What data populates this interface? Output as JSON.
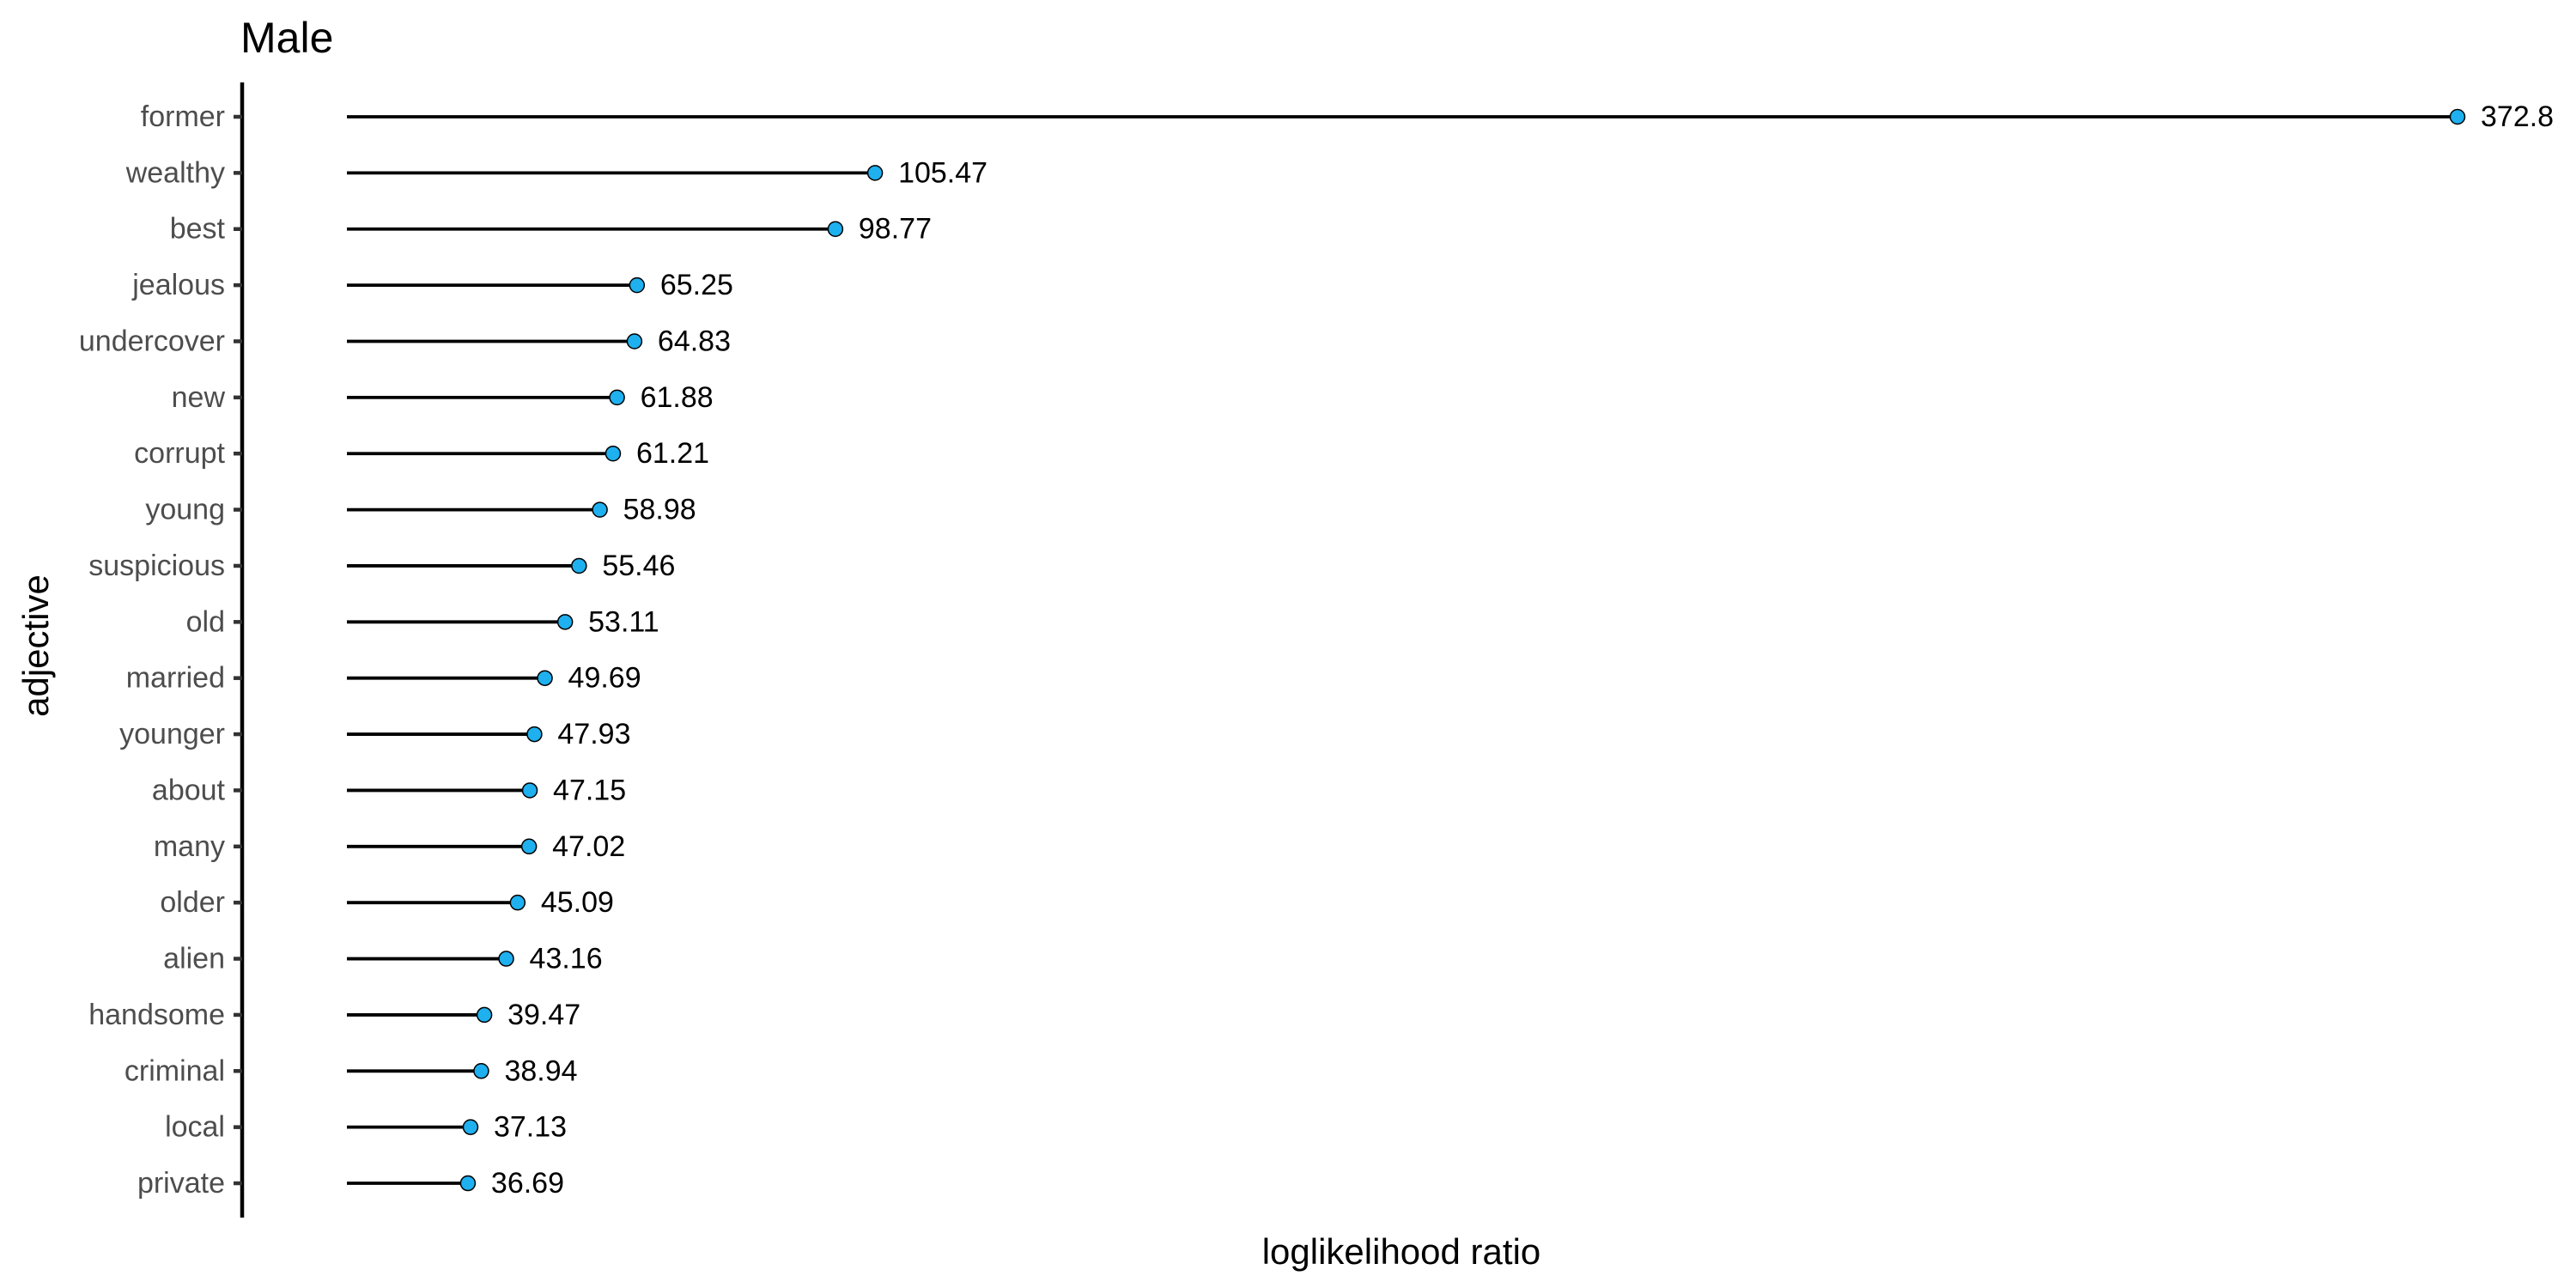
{
  "chart_data": {
    "type": "lollipop",
    "title": "Male",
    "xlabel": "loglikelihood ratio",
    "ylabel": "adjective",
    "categories": [
      "former",
      "wealthy",
      "best",
      "jealous",
      "undercover",
      "new",
      "corrupt",
      "young",
      "suspicious",
      "old",
      "married",
      "younger",
      "about",
      "many",
      "older",
      "alien",
      "handsome",
      "criminal",
      "local",
      "private"
    ],
    "values": [
      372.8,
      105.47,
      98.77,
      65.25,
      64.83,
      61.88,
      61.21,
      58.98,
      55.46,
      53.11,
      49.69,
      47.93,
      47.15,
      47.02,
      45.09,
      43.16,
      39.47,
      38.94,
      37.13,
      36.69
    ],
    "data_labels": [
      "372.8",
      "105.47",
      "98.77",
      "65.25",
      "64.83",
      "61.88",
      "61.21",
      "58.98",
      "55.46",
      "53.11",
      "49.69",
      "47.93",
      "47.15",
      "47.02",
      "45.09",
      "43.16",
      "39.47",
      "38.94",
      "37.13",
      "36.69"
    ],
    "xlim": [
      0,
      372.8
    ],
    "grid": false,
    "legend": "none",
    "colors": {
      "point": "#1fb0ef",
      "stem": "#000000",
      "axis": "#000000",
      "tick_label": "#4d4d4d"
    }
  }
}
